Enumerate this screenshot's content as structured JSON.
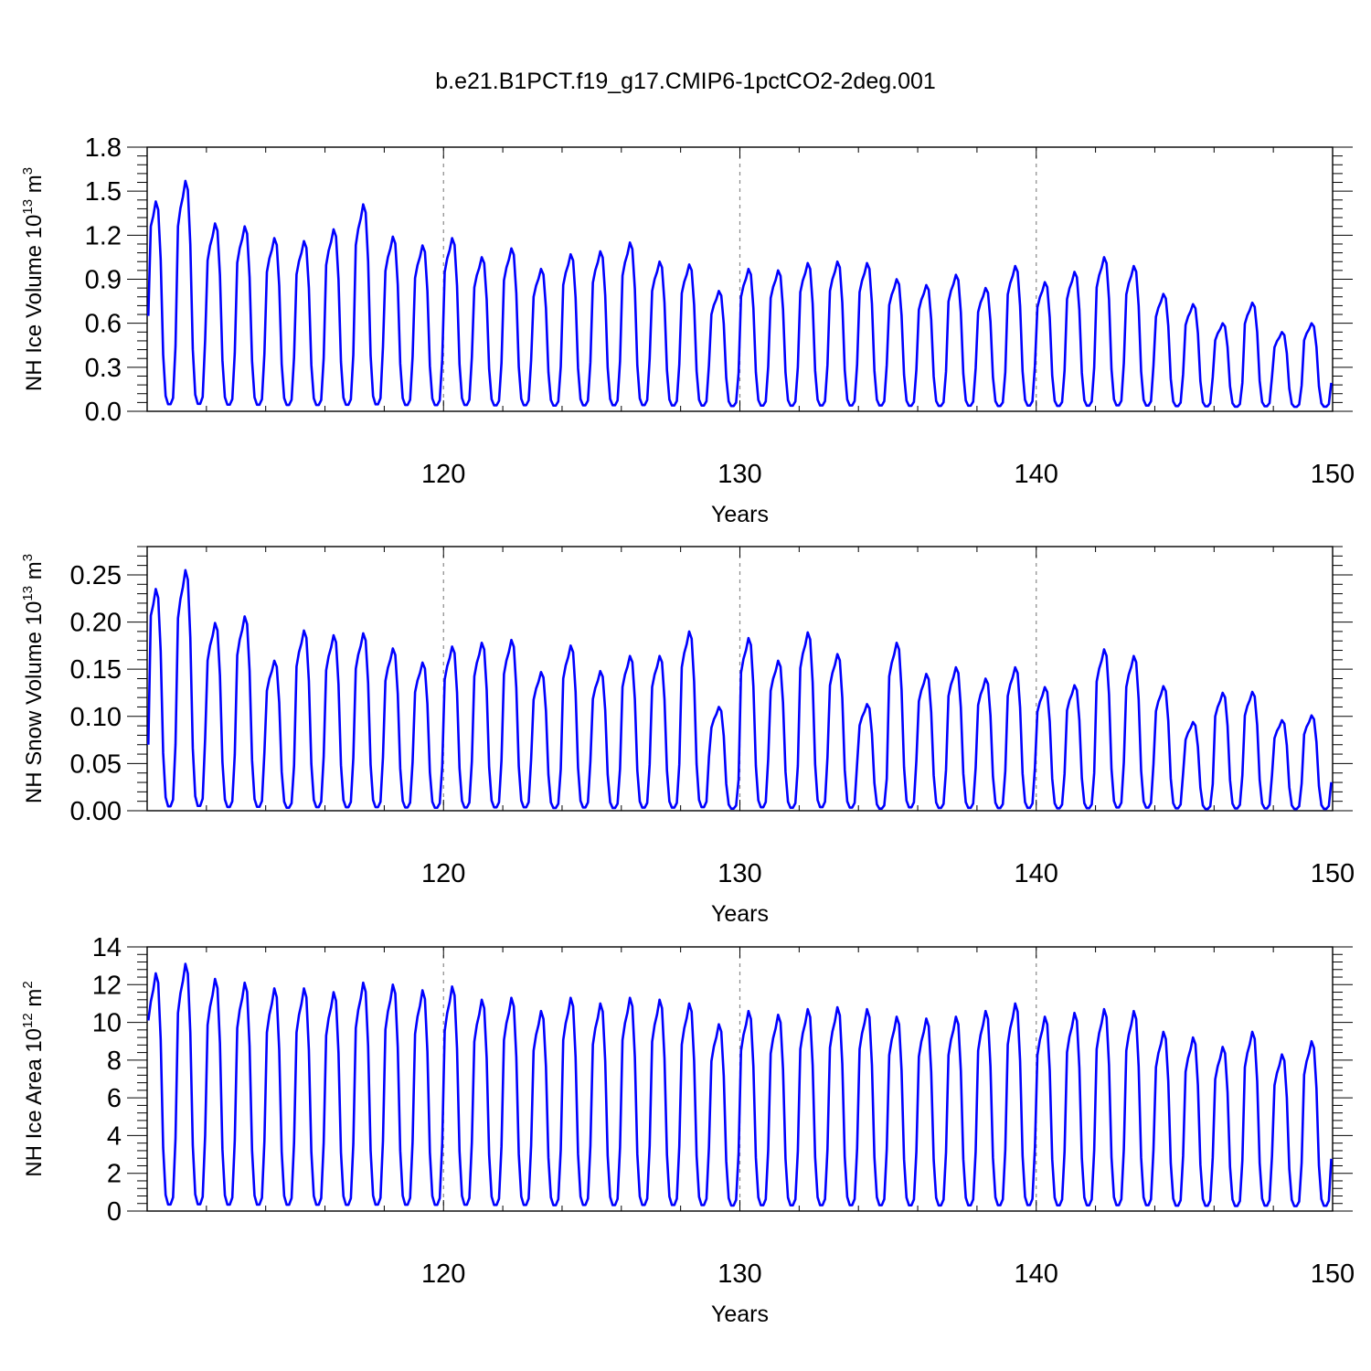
{
  "title": "b.e21.B1PCT.f19_g17.CMIP6-1pctCO2-2deg.001",
  "colors": {
    "series": "#0000ff",
    "axis": "#000000",
    "grid": "#888888",
    "background": "#ffffff"
  },
  "chart_data": [
    {
      "type": "line",
      "title": "b.e21.B1PCT.f19_g17.CMIP6-1pctCO2-2deg.001",
      "xlabel": "Years",
      "ylabel": {
        "text": "NH Ice Volume 10",
        "exponent": "13",
        "unit": " m",
        "unit_exponent": "3"
      },
      "xlim": [
        110,
        150
      ],
      "ylim": [
        0,
        1.8
      ],
      "xticks": [
        120,
        130,
        140,
        150
      ],
      "xtick_labels": [
        "120",
        "130",
        "140",
        "150"
      ],
      "yticks": [
        0,
        0.3,
        0.6,
        0.9,
        1.2,
        1.5,
        1.8
      ],
      "ytick_labels": [
        "0.0",
        "0.3",
        "0.6",
        "0.9",
        "1.2",
        "1.5",
        "1.8"
      ],
      "vertical_reference_lines": [
        120,
        130,
        140
      ],
      "grid": false,
      "series": [
        {
          "start_year": 110.04,
          "step_years": 0.08333,
          "seasonal_cycle": true,
          "min_value": 0.02,
          "first_value": 0.65,
          "annual_peaks": [
            1.43,
            1.57,
            1.28,
            1.26,
            1.18,
            1.16,
            1.24,
            1.41,
            1.19,
            1.13,
            1.18,
            1.05,
            1.11,
            0.97,
            1.07,
            1.09,
            1.15,
            1.02,
            1.0,
            0.82,
            0.97,
            0.96,
            1.01,
            1.02,
            1.01,
            0.9,
            0.86,
            0.93,
            0.84,
            0.99,
            0.88,
            0.95,
            1.05,
            0.99,
            0.8,
            0.73,
            0.6,
            0.74,
            0.54,
            0.6
          ]
        }
      ]
    },
    {
      "type": "line",
      "xlabel": "Years",
      "ylabel": {
        "text": "NH Snow Volume 10",
        "exponent": "13",
        "unit": " m",
        "unit_exponent": "3"
      },
      "xlim": [
        110,
        150
      ],
      "ylim": [
        0,
        0.28
      ],
      "xticks": [
        120,
        130,
        140,
        150
      ],
      "xtick_labels": [
        "120",
        "130",
        "140",
        "150"
      ],
      "yticks": [
        0,
        0.05,
        0.1,
        0.15,
        0.2,
        0.25
      ],
      "ytick_labels": [
        "0.00",
        "0.05",
        "0.10",
        "0.15",
        "0.20",
        "0.25"
      ],
      "vertical_reference_lines": [
        120,
        130,
        140
      ],
      "grid": false,
      "series": [
        {
          "start_year": 110.04,
          "step_years": 0.08333,
          "seasonal_cycle": true,
          "min_value": 0.0,
          "first_value": 0.07,
          "annual_peaks": [
            0.235,
            0.255,
            0.199,
            0.206,
            0.159,
            0.191,
            0.186,
            0.188,
            0.172,
            0.157,
            0.174,
            0.178,
            0.181,
            0.147,
            0.175,
            0.148,
            0.164,
            0.164,
            0.19,
            0.11,
            0.183,
            0.159,
            0.189,
            0.166,
            0.113,
            0.178,
            0.145,
            0.152,
            0.14,
            0.152,
            0.131,
            0.133,
            0.171,
            0.164,
            0.132,
            0.094,
            0.125,
            0.126,
            0.096,
            0.101
          ]
        }
      ]
    },
    {
      "type": "line",
      "xlabel": "Years",
      "ylabel": {
        "text": "NH Ice Area 10",
        "exponent": "12",
        "unit": " m",
        "unit_exponent": "2"
      },
      "xlim": [
        110,
        150
      ],
      "ylim": [
        0,
        14
      ],
      "xticks": [
        120,
        130,
        140,
        150
      ],
      "xtick_labels": [
        "120",
        "130",
        "140",
        "150"
      ],
      "yticks": [
        0,
        2,
        4,
        6,
        8,
        10,
        12,
        14
      ],
      "ytick_labels": [
        "0",
        "2",
        "4",
        "6",
        "8",
        "10",
        "12",
        "14"
      ],
      "vertical_reference_lines": [
        120,
        130,
        140
      ],
      "grid": false,
      "series": [
        {
          "start_year": 110.04,
          "step_years": 0.08333,
          "seasonal_cycle": true,
          "min_value": 0.1,
          "first_value": 10.1,
          "annual_peaks": [
            12.6,
            13.1,
            12.3,
            12.1,
            11.8,
            11.8,
            11.6,
            12.1,
            12.0,
            11.7,
            11.9,
            11.2,
            11.3,
            10.6,
            11.3,
            11.0,
            11.3,
            11.2,
            11.0,
            9.9,
            10.6,
            10.4,
            10.7,
            10.8,
            10.7,
            10.3,
            10.2,
            10.3,
            10.6,
            11.0,
            10.3,
            10.5,
            10.7,
            10.6,
            9.5,
            9.2,
            8.7,
            9.5,
            8.3,
            9.0
          ]
        }
      ]
    }
  ]
}
